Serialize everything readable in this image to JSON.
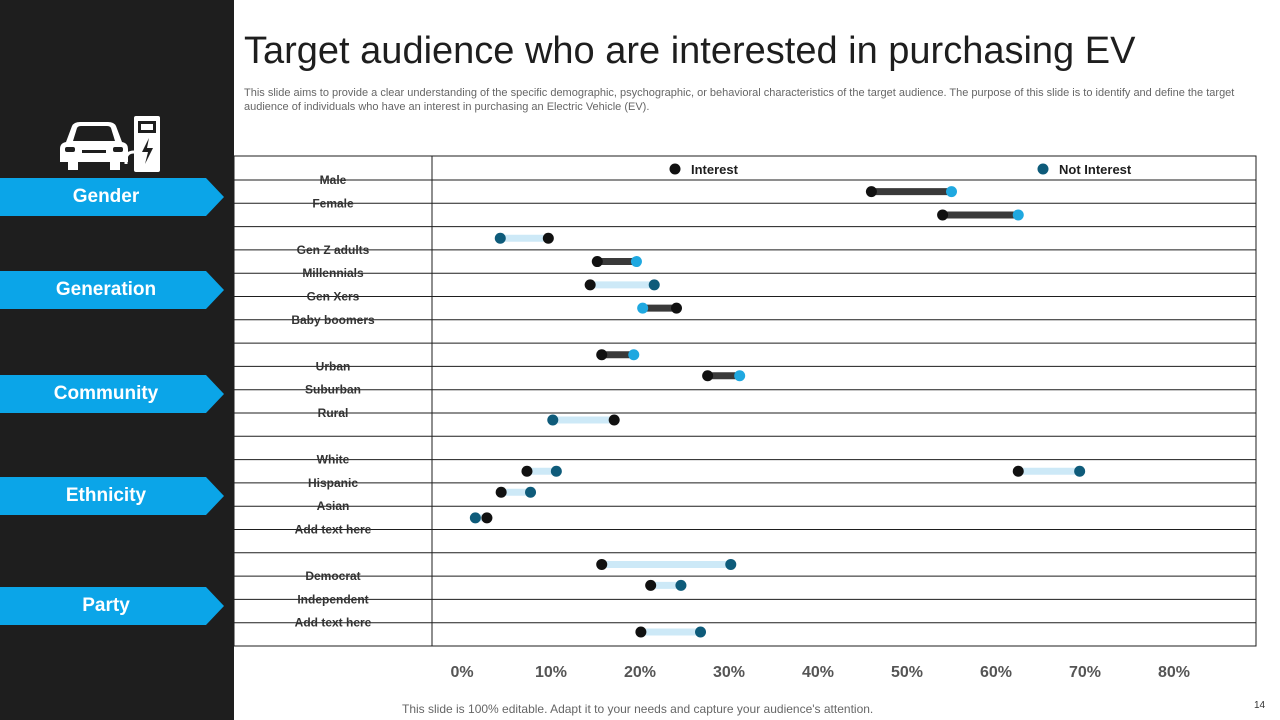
{
  "title": "Target audience who are interested in purchasing EV",
  "subtitle": "This slide aims to provide a clear understanding of the specific demographic, psychographic, or behavioral characteristics of the target audience. The purpose of this slide is to identify and define the target audience of individuals who have an interest in purchasing an Electric Vehicle (EV).",
  "footer": "This slide is 100% editable. Adapt it to your needs and capture your audience's attention.",
  "page_number": "14",
  "sidebar": {
    "icon": "car-charging-station-icon",
    "categories": [
      "Gender",
      "Generation",
      "Community",
      "Ethnicity",
      "Party"
    ]
  },
  "colors": {
    "sidebar_bg": "#1e1e1e",
    "tag": "#0ba5e8",
    "interest_dot": "#111111",
    "not_interest_dot": "#0e5b7a",
    "not_interest_light_dot": "#1fa8e0",
    "dark_bar": "#3a3a3a",
    "light_bar": "#cde9f7"
  },
  "chart_data": {
    "type": "dumbbell",
    "legend": [
      "Interest",
      "Not Interest"
    ],
    "legend_position": "top",
    "x_ticks": [
      "0%",
      "10%",
      "20%",
      "30%",
      "40%",
      "50%",
      "60%",
      "70%",
      "80%"
    ],
    "xlim": [
      0,
      80
    ],
    "row_labels": [
      "Male",
      "Female",
      "",
      "Gen Z adults",
      "Millennials",
      "Gen Xers",
      "Baby boomers",
      "",
      "Urban",
      "Suburban",
      "Rural",
      "",
      "White",
      "Hispanic",
      "Asian",
      "Add  text here",
      "",
      "Democrat",
      "Independent",
      "Add  text here"
    ],
    "points": [
      {
        "row": 0.5,
        "interest": 46,
        "not_interest": 55,
        "style": "dark"
      },
      {
        "row": 1.5,
        "interest": 54,
        "not_interest": 62.5,
        "style": "dark"
      },
      {
        "row": 2.5,
        "interest": 9.7,
        "not_interest": 4.3,
        "style": "light"
      },
      {
        "row": 3.5,
        "interest": 15.2,
        "not_interest": 19.6,
        "style": "dark"
      },
      {
        "row": 4.5,
        "interest": 14.4,
        "not_interest": 21.6,
        "style": "light"
      },
      {
        "row": 5.5,
        "interest": 24.1,
        "not_interest": 20.3,
        "style": "dark"
      },
      {
        "row": 7.5,
        "interest": 15.7,
        "not_interest": 19.3,
        "style": "dark"
      },
      {
        "row": 8.4,
        "interest": 27.6,
        "not_interest": 31.2,
        "style": "dark"
      },
      {
        "row": 10.3,
        "interest": 17.1,
        "not_interest": 10.2,
        "style": "light"
      },
      {
        "row": 12.5,
        "interest": 7.3,
        "not_interest": 10.6,
        "style": "light"
      },
      {
        "row": 12.5,
        "interest": 62.5,
        "not_interest": 69.4,
        "style": "light"
      },
      {
        "row": 13.4,
        "interest": 4.4,
        "not_interest": 7.7,
        "style": "light"
      },
      {
        "row": 14.5,
        "interest": 2.8,
        "not_interest": 1.5,
        "style": "light"
      },
      {
        "row": 16.5,
        "interest": 15.7,
        "not_interest": 30.2,
        "style": "light"
      },
      {
        "row": 17.4,
        "interest": 21.2,
        "not_interest": 24.6,
        "style": "light"
      },
      {
        "row": 19.4,
        "interest": 20.1,
        "not_interest": 26.8,
        "style": "light"
      }
    ]
  }
}
